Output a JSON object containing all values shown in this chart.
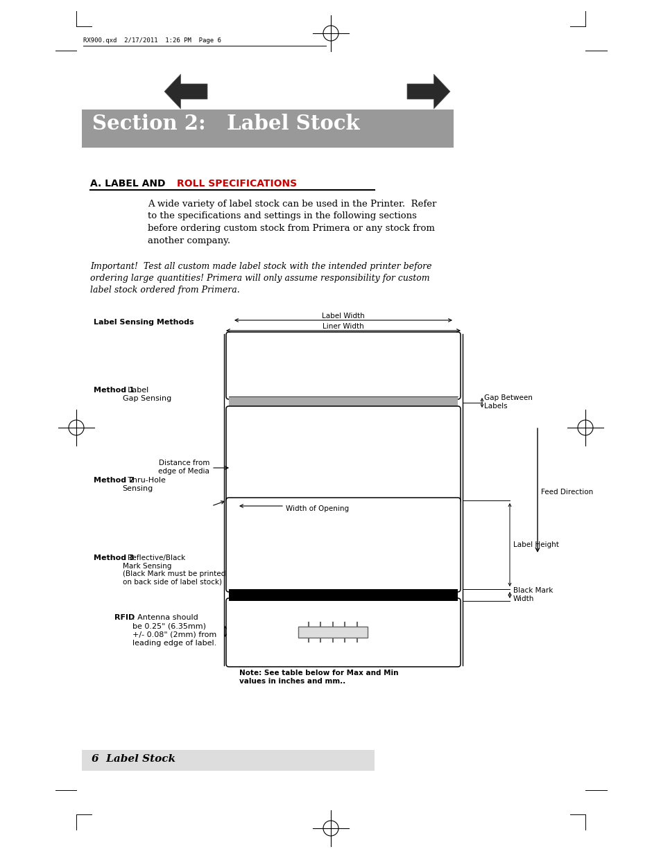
{
  "page_header": "RX900.qxd  2/17/2011  1:26 PM  Page 6",
  "section_title": "Section 2:   Label Stock",
  "section_bg": "#999999",
  "section_text_color": "#ffffff",
  "heading_a": "A. LABEL AND ",
  "heading_roll": "ROLL SPECIFICATIONS",
  "heading_roll_color": "#cc0000",
  "body_text1": "A wide variety of label stock can be used in the Printer.  Refer\nto the specifications and settings in the following sections\nbefore ordering custom stock from Primera or any stock from\nanother company.",
  "important_text": "Important!  Test all custom made label stock with the intended printer before\nordering large quantities! Primera will only assume responsibility for custom\nlabel stock ordered from Primera.",
  "label_sensing_methods": "Label Sensing Methods",
  "method1_bold": "Method 1",
  "method1_rest": ": Label\nGap Sensing",
  "method2_bold": "Method 2",
  "method2_rest": ": Thru-Hole\nSensing",
  "method3_bold": "Method 3",
  "method3_rest": ": Reflective/Black\nMark Sensing\n(Black Mark must be printed\non back side of label stock)",
  "label_width_text": "Label Width",
  "liner_width_text": "Liner Width",
  "gap_between_labels": "Gap Between\nLabels",
  "feed_direction": "Feed Direction",
  "distance_from_edge": "Distance from\nedge of Media",
  "width_of_opening": "← Width of Opening",
  "label_height": "Label Height",
  "black_mark_width": "Black Mark\nWidth",
  "note_text": "Note: See table below for Max and Min\nvalues in inches and mm..",
  "footer_text": "6  Label Stock",
  "footer_bg": "#dddddd",
  "bg_color": "#ffffff"
}
